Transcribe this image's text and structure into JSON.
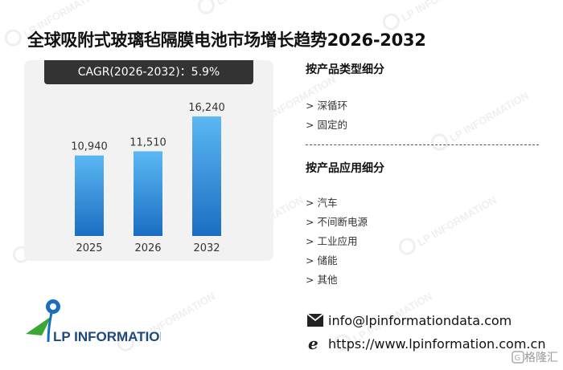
{
  "title": "全球吸附式玻璃毡隔膜电池市场增长趋势2026-2032",
  "cagr_label": "CAGR(2026-2032)：5.9%",
  "chart_data": {
    "type": "bar",
    "title": "",
    "categories": [
      "2025",
      "2026",
      "2032"
    ],
    "values": [
      10940,
      11510,
      16240
    ],
    "value_labels": [
      "10,940",
      "11,510",
      "16,240"
    ],
    "ylim": [
      0,
      18000
    ],
    "grid": false,
    "colors": {
      "bar_top": "#5bb8f2",
      "bar_bottom": "#1a6ec2"
    }
  },
  "segments": {
    "by_type": {
      "title": "按产品类型细分",
      "items": [
        "> 深循环",
        "> 固定的"
      ]
    },
    "by_application": {
      "title": "按产品应用细分",
      "items": [
        "> 汽车",
        "> 不间断电源",
        "> 工业应用",
        "> 储能",
        "> 其他"
      ]
    }
  },
  "logo": {
    "text": "LP INFORMATION"
  },
  "contact": {
    "email": "info@lpinformationdata.com",
    "website": "https://www.lpinformation.com.cn"
  },
  "watermark_text": "LP INFORMATION",
  "corner_mark": "格隆汇",
  "icons": {
    "email": "envelope-icon",
    "website": "ie-browser-icon",
    "logo": "lp-logo-icon"
  }
}
